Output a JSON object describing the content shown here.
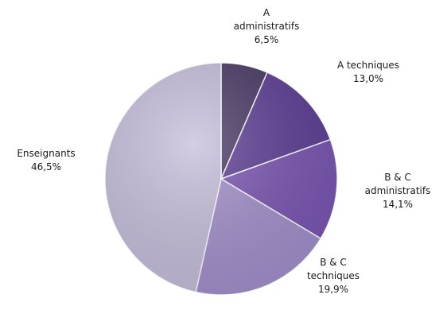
{
  "chart_data": {
    "type": "pie",
    "title": "",
    "slices": [
      {
        "label_lines": [
          "A",
          "administratifs"
        ],
        "value_text": "6,5%",
        "value": 6.5,
        "color": "#4a3a66"
      },
      {
        "label_lines": [
          "A techniques"
        ],
        "value_text": "13,0%",
        "value": 13.0,
        "color": "#5e3f96"
      },
      {
        "label_lines": [
          "B & C",
          "administratifs"
        ],
        "value_text": "14,1%",
        "value": 14.1,
        "color": "#7b56b3"
      },
      {
        "label_lines": [
          "B & C",
          "techniques"
        ],
        "value_text": "19,9%",
        "value": 19.9,
        "color": "#a390cc"
      },
      {
        "label_lines": [
          "Enseignants"
        ],
        "value_text": "46,5%",
        "value": 46.5,
        "color": "#c6bedc"
      }
    ],
    "legend": "none",
    "start_angle": "12 o'clock, clockwise",
    "labels_outside": true
  }
}
